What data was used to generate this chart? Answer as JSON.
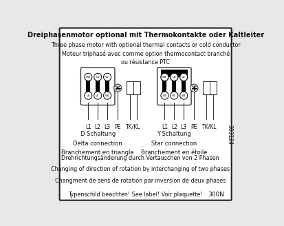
{
  "title_bold": "Dreiphasenmotor optional mit Thermokontakte oder Kaltleiter",
  "line2": "Three phase motor with optional thermal contacts or cold conductor",
  "line3": "Moteur triphasé avec comme option thermocontact branché",
  "line4": "ou résistance PTC",
  "left_label1": "D Schaltung",
  "left_label2": "Delta connection",
  "left_label3": "Branchement en triangle",
  "right_label1": "Y Schaltung",
  "right_label2": "Star connection",
  "right_label3": "Branchement en étoile",
  "bottom1": "Drehrichtungsänderung durch Vertauschen von 2 Phasen",
  "bottom2": "Changing of direction of rotation by interchanging of two phases",
  "bottom3": "Changment de sens de rotation par inversion de deux phases",
  "bottom4": "Typenschild beachten! See label! Voir plaquette!",
  "bottom4_right": "300N",
  "side_text": "303124",
  "terminals": [
    "L1",
    "L2",
    "L3",
    "PE",
    "TK/KL"
  ],
  "bg_color": "#e8e8e8",
  "border_color": "#222222",
  "box_bg": "#ffffff"
}
